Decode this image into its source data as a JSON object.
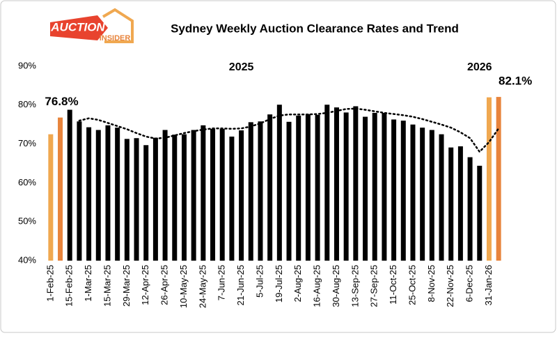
{
  "logo": {
    "top": "AUCTION",
    "bottom": "INSIDER"
  },
  "chart_data": {
    "type": "bar",
    "title": "Sydney Weekly Auction Clearance Rates and Trend",
    "categories": [
      "1-Feb-25",
      null,
      "15-Feb-25",
      null,
      "1-Mar-25",
      null,
      "15-Mar-25",
      null,
      "29-Mar-25",
      null,
      "12-Apr-25",
      null,
      "26-Apr-25",
      null,
      "10-May-25",
      null,
      "24-May-25",
      null,
      "7-Jun-25",
      null,
      "21-Jun-25",
      null,
      "5-Jul-25",
      null,
      "19-Jul-25",
      null,
      "2-Aug-25",
      null,
      "16-Aug-25",
      null,
      "30-Aug-25",
      null,
      "13-Sep-25",
      null,
      "27-Sep-25",
      null,
      "11-Oct-25",
      null,
      "25-Oct-25",
      null,
      "8-Nov-25",
      null,
      "22-Nov-25",
      null,
      "6-Dec-25",
      null,
      "31-Jan-26",
      null
    ],
    "values": [
      72.5,
      76.8,
      78.8,
      75.8,
      74.3,
      73.6,
      74.8,
      74.2,
      71.3,
      71.5,
      69.7,
      71.6,
      73.6,
      72.4,
      72.5,
      73.6,
      74.8,
      73.9,
      73.9,
      71.9,
      73.5,
      75.6,
      75.8,
      77.6,
      80.1,
      75.7,
      77.3,
      77.7,
      77.5,
      80.1,
      79.4,
      78.1,
      79.7,
      77.0,
      78.0,
      78.0,
      76.3,
      76.0,
      75.0,
      74.2,
      73.6,
      72.5,
      69.1,
      69.4,
      66.6,
      64.4,
      82.0,
      82.1
    ],
    "value_labels": [
      null,
      "76.8%",
      null,
      null,
      null,
      null,
      null,
      null,
      null,
      null,
      null,
      null,
      null,
      null,
      null,
      null,
      null,
      null,
      null,
      null,
      null,
      null,
      null,
      null,
      null,
      null,
      null,
      null,
      null,
      null,
      null,
      null,
      null,
      null,
      null,
      null,
      null,
      null,
      null,
      null,
      null,
      null,
      null,
      null,
      null,
      null,
      null,
      "82.1%"
    ],
    "colors": [
      "#f0a850",
      "#e8843c",
      "#000000",
      "#000000",
      "#000000",
      "#000000",
      "#000000",
      "#000000",
      "#000000",
      "#000000",
      "#000000",
      "#000000",
      "#000000",
      "#000000",
      "#000000",
      "#000000",
      "#000000",
      "#000000",
      "#000000",
      "#000000",
      "#000000",
      "#000000",
      "#000000",
      "#000000",
      "#000000",
      "#000000",
      "#000000",
      "#000000",
      "#000000",
      "#000000",
      "#000000",
      "#000000",
      "#000000",
      "#000000",
      "#000000",
      "#000000",
      "#000000",
      "#000000",
      "#000000",
      "#000000",
      "#000000",
      "#000000",
      "#000000",
      "#000000",
      "#000000",
      "#000000",
      "#f0a850",
      "#e8843c"
    ],
    "trend": [
      null,
      null,
      null,
      76.0,
      76.6,
      76.2,
      75.4,
      74.6,
      73.8,
      72.8,
      71.9,
      71.4,
      71.6,
      72.2,
      72.8,
      73.3,
      73.7,
      74.0,
      74.0,
      73.9,
      74.0,
      74.5,
      75.3,
      76.4,
      77.3,
      77.6,
      77.6,
      77.6,
      77.7,
      78.0,
      78.5,
      79.0,
      79.1,
      78.8,
      78.4,
      78.0,
      77.7,
      77.4,
      77.0,
      76.4,
      75.7,
      75.0,
      74.2,
      73.0,
      71.5,
      68.0,
      70.5,
      74.0
    ],
    "trend_color": "#000000",
    "annotations": [
      {
        "text": "2025",
        "category": 20
      },
      {
        "text": "2026",
        "category": 45
      }
    ],
    "ylim": [
      40,
      90
    ],
    "yticks": [
      {
        "value": 40,
        "label": "40%"
      },
      {
        "value": 50,
        "label": "50%"
      },
      {
        "value": 60,
        "label": "60%"
      },
      {
        "value": 70,
        "label": "70%"
      },
      {
        "value": 80,
        "label": "80%"
      },
      {
        "value": 90,
        "label": "90%"
      }
    ],
    "grid": false
  }
}
